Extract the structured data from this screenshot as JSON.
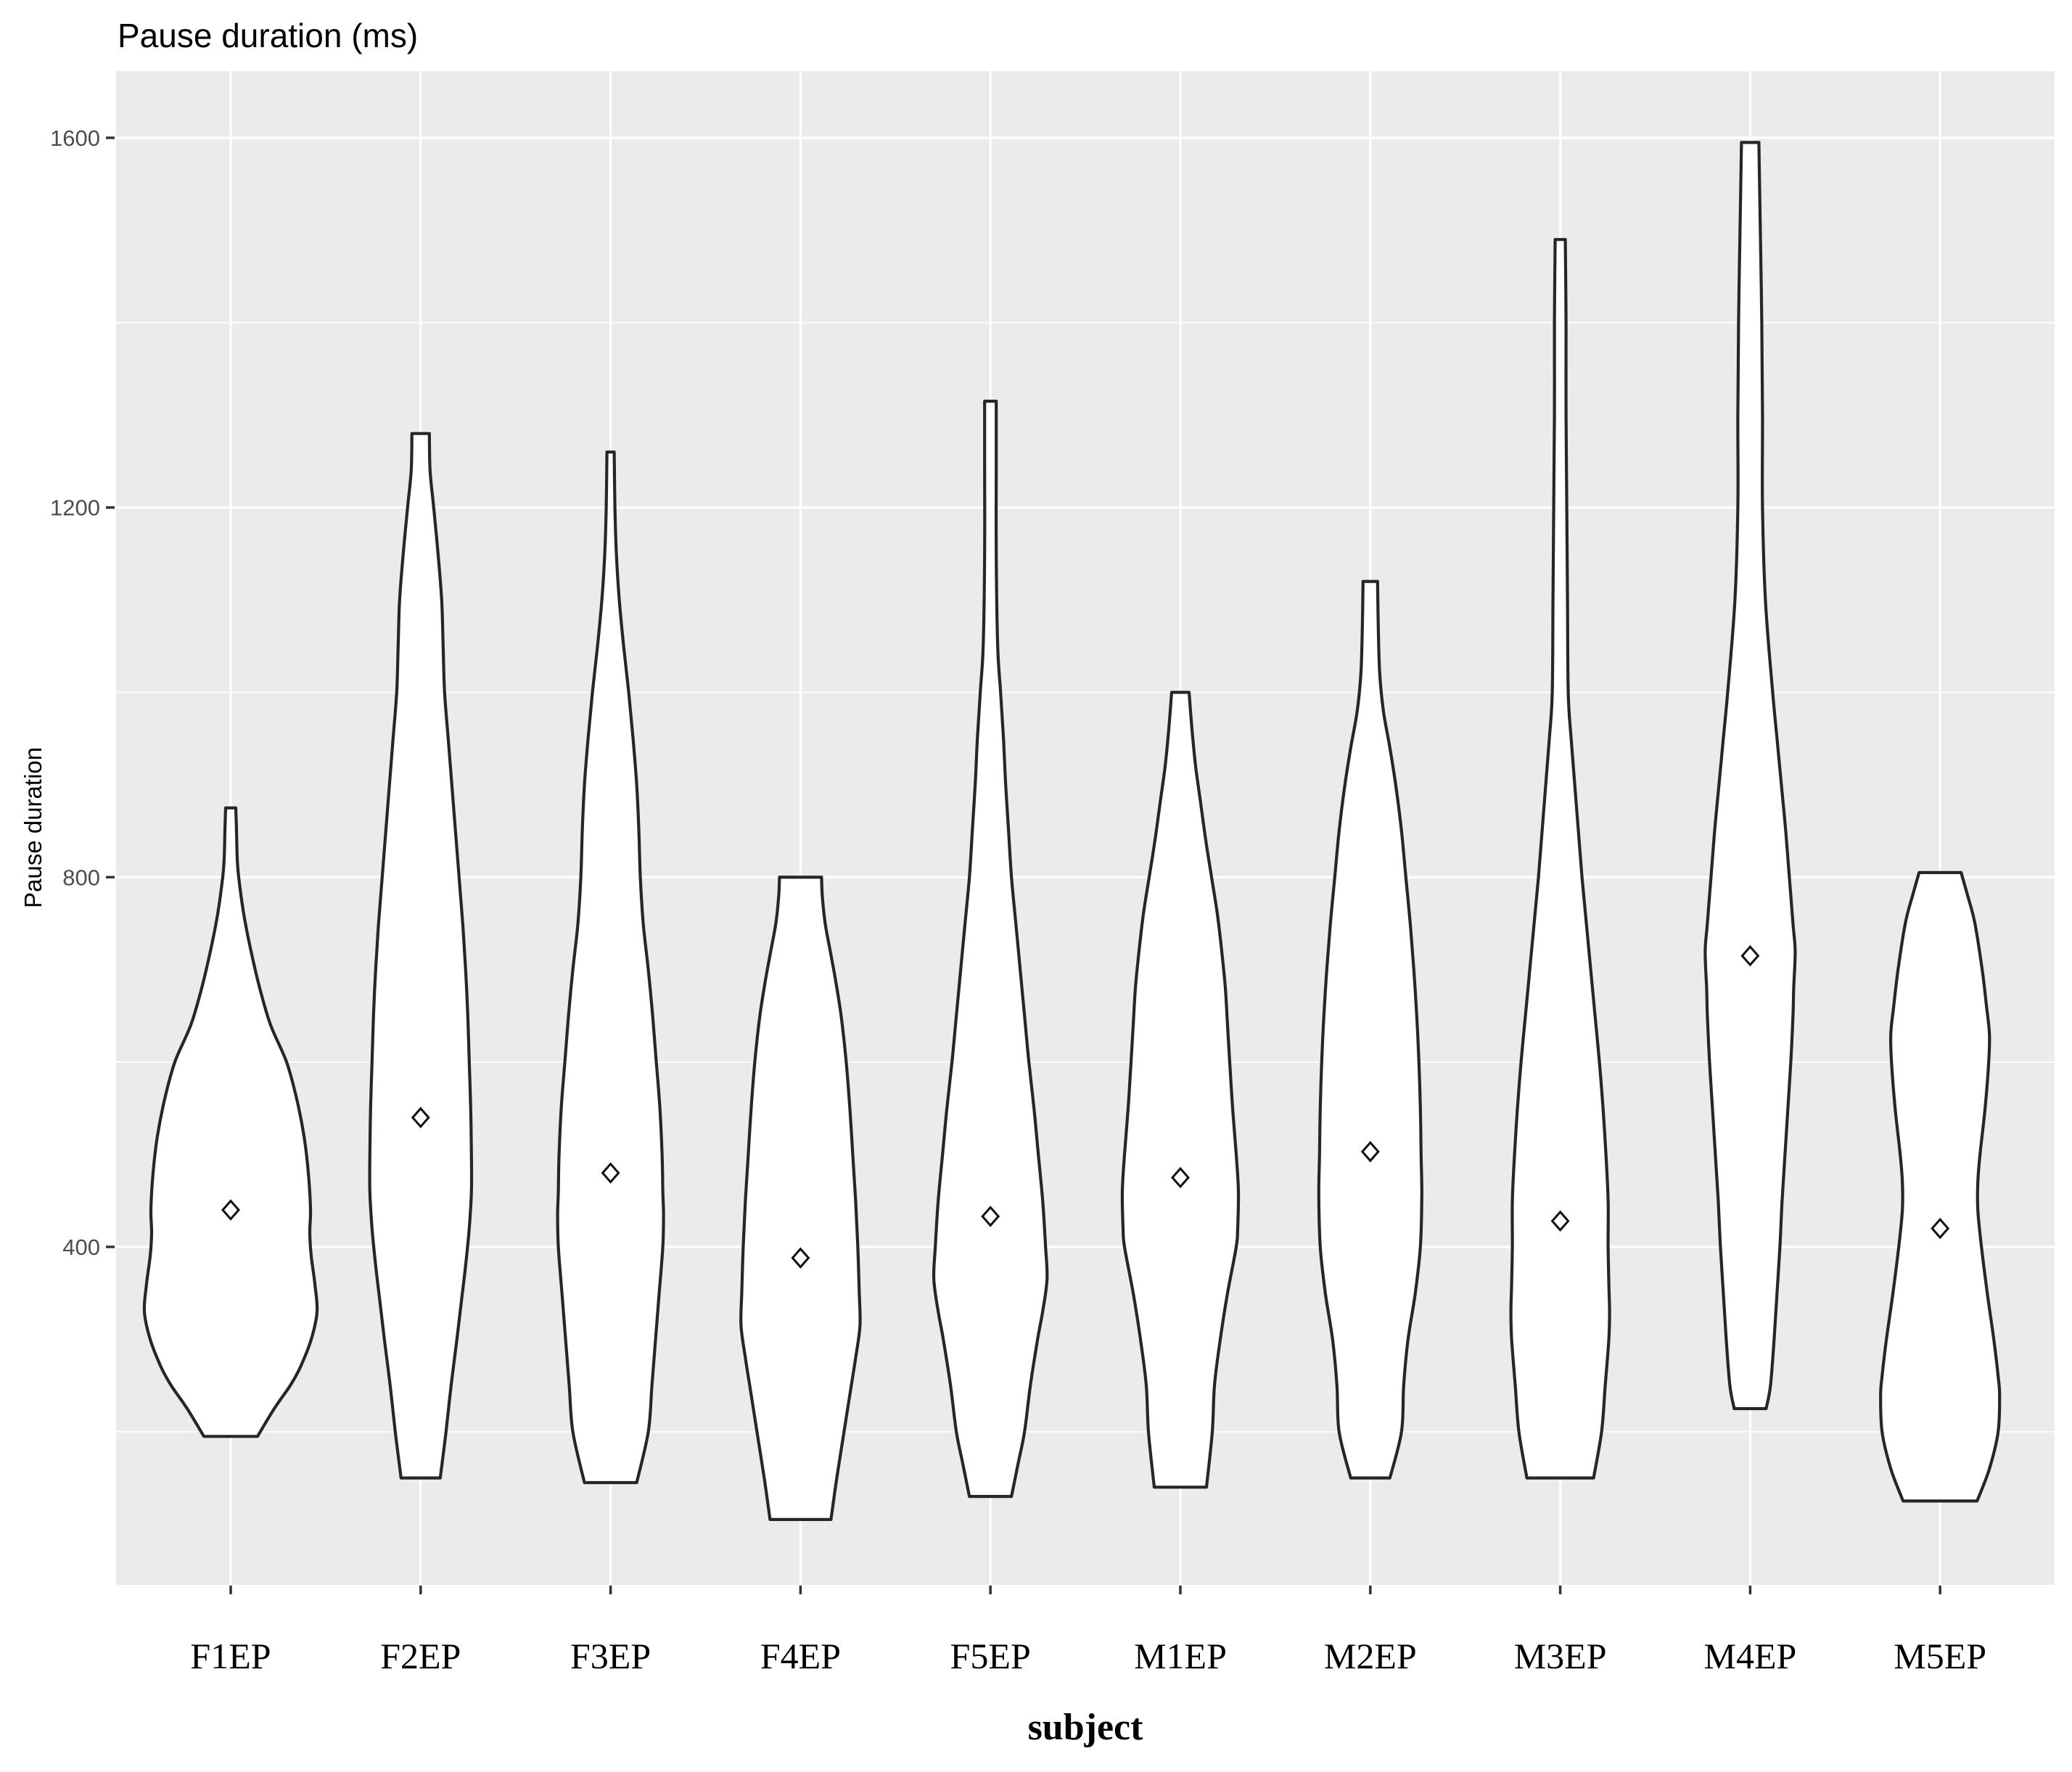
{
  "title": "Pause duration (ms)",
  "axes": {
    "y_title": "Pause duration",
    "x_title": "subject"
  },
  "colors": {
    "panel_bg": "#EBEBEB",
    "gridline": "#FFFFFF",
    "violin_fill": "#FFFFFF",
    "violin_stroke": "#262626",
    "axis_tick_label": "#4D4D4D",
    "axis_tick_mark": "#333333",
    "text": "#000000",
    "mean_marker_stroke": "#111111",
    "mean_marker_fill": "#FFFFFF"
  },
  "chart_data": {
    "type": "violin",
    "title": "Pause duration (ms)",
    "xlabel": "subject",
    "ylabel": "Pause duration",
    "y_unit": "ms",
    "y_major_ticks": [
      400,
      800,
      1200,
      1600
    ],
    "y_tick_labels": [
      "400",
      "800",
      "1200",
      "1600"
    ],
    "y_minor_gridlines": [
      200,
      600,
      1000,
      1400
    ],
    "y_panel_range": [
      34,
      1672
    ],
    "grid": "white major and minor horizontal gridlines plus vertical line per category on gray panel",
    "legend": "none",
    "mean_marker": "open diamond = mean pause duration",
    "categories": [
      "F1EP",
      "F2EP",
      "F3EP",
      "F4EP",
      "F5EP",
      "M1EP",
      "M2EP",
      "M3EP",
      "M4EP",
      "M5EP"
    ],
    "series": [
      {
        "subject": "F1EP",
        "mean": 440,
        "min": 195,
        "max": 875,
        "profile": [
          [
            875,
            7
          ],
          [
            850,
            8
          ],
          [
            820,
            9
          ],
          [
            800,
            11
          ],
          [
            760,
            18
          ],
          [
            720,
            28
          ],
          [
            680,
            40
          ],
          [
            640,
            55
          ],
          [
            600,
            77
          ],
          [
            560,
            91
          ],
          [
            520,
            101
          ],
          [
            480,
            107
          ],
          [
            440,
            110
          ],
          [
            415,
            109
          ],
          [
            390,
            111
          ],
          [
            360,
            116
          ],
          [
            330,
            119
          ],
          [
            300,
            111
          ],
          [
            270,
            96
          ],
          [
            250,
            82
          ],
          [
            225,
            60
          ],
          [
            195,
            37
          ]
        ]
      },
      {
        "subject": "F2EP",
        "mean": 540,
        "min": 150,
        "max": 1280,
        "profile": [
          [
            1280,
            12
          ],
          [
            1240,
            13
          ],
          [
            1200,
            18
          ],
          [
            1150,
            24
          ],
          [
            1100,
            29
          ],
          [
            1050,
            31
          ],
          [
            1000,
            33
          ],
          [
            950,
            38
          ],
          [
            900,
            43
          ],
          [
            850,
            48
          ],
          [
            800,
            53
          ],
          [
            750,
            58
          ],
          [
            700,
            62
          ],
          [
            650,
            65
          ],
          [
            600,
            67
          ],
          [
            550,
            69
          ],
          [
            500,
            70
          ],
          [
            460,
            70
          ],
          [
            420,
            67
          ],
          [
            380,
            62
          ],
          [
            340,
            56
          ],
          [
            300,
            50
          ],
          [
            250,
            42
          ],
          [
            200,
            35
          ],
          [
            150,
            27
          ]
        ]
      },
      {
        "subject": "F3EP",
        "mean": 480,
        "min": 145,
        "max": 1260,
        "profile": [
          [
            1260,
            5
          ],
          [
            1200,
            6
          ],
          [
            1150,
            8
          ],
          [
            1100,
            12
          ],
          [
            1050,
            18
          ],
          [
            1000,
            25
          ],
          [
            950,
            31
          ],
          [
            900,
            36
          ],
          [
            850,
            39
          ],
          [
            800,
            41
          ],
          [
            750,
            45
          ],
          [
            700,
            52
          ],
          [
            650,
            58
          ],
          [
            600,
            63
          ],
          [
            550,
            68
          ],
          [
            500,
            71
          ],
          [
            460,
            72
          ],
          [
            435,
            73
          ],
          [
            400,
            72
          ],
          [
            350,
            67
          ],
          [
            300,
            62
          ],
          [
            250,
            57
          ],
          [
            200,
            52
          ],
          [
            145,
            36
          ]
        ]
      },
      {
        "subject": "F4EP",
        "mean": 388,
        "min": 105,
        "max": 800,
        "profile": [
          [
            800,
            29
          ],
          [
            780,
            30
          ],
          [
            750,
            34
          ],
          [
            720,
            41
          ],
          [
            690,
            48
          ],
          [
            650,
            56
          ],
          [
            600,
            63
          ],
          [
            550,
            68
          ],
          [
            500,
            72
          ],
          [
            450,
            76
          ],
          [
            400,
            79
          ],
          [
            350,
            81
          ],
          [
            315,
            82
          ],
          [
            280,
            76
          ],
          [
            250,
            70
          ],
          [
            200,
            60
          ],
          [
            150,
            50
          ],
          [
            105,
            42
          ]
        ]
      },
      {
        "subject": "F5EP",
        "mean": 433,
        "min": 130,
        "max": 1315,
        "profile": [
          [
            1315,
            8
          ],
          [
            1250,
            8
          ],
          [
            1150,
            8
          ],
          [
            1050,
            10
          ],
          [
            1000,
            14
          ],
          [
            950,
            18
          ],
          [
            900,
            21
          ],
          [
            850,
            25
          ],
          [
            800,
            29
          ],
          [
            750,
            35
          ],
          [
            700,
            41
          ],
          [
            650,
            47
          ],
          [
            600,
            53
          ],
          [
            550,
            60
          ],
          [
            500,
            66
          ],
          [
            450,
            72
          ],
          [
            400,
            76
          ],
          [
            365,
            78
          ],
          [
            330,
            72
          ],
          [
            300,
            65
          ],
          [
            250,
            55
          ],
          [
            200,
            47
          ],
          [
            165,
            38
          ],
          [
            130,
            29
          ]
        ]
      },
      {
        "subject": "M1EP",
        "mean": 475,
        "min": 140,
        "max": 1000,
        "profile": [
          [
            1000,
            12
          ],
          [
            960,
            16
          ],
          [
            920,
            21
          ],
          [
            880,
            28
          ],
          [
            840,
            35
          ],
          [
            800,
            43
          ],
          [
            760,
            51
          ],
          [
            720,
            57
          ],
          [
            680,
            62
          ],
          [
            640,
            65
          ],
          [
            600,
            68
          ],
          [
            550,
            72
          ],
          [
            500,
            77
          ],
          [
            460,
            80
          ],
          [
            420,
            79
          ],
          [
            400,
            77
          ],
          [
            350,
            65
          ],
          [
            300,
            55
          ],
          [
            250,
            47
          ],
          [
            200,
            44
          ],
          [
            140,
            36
          ]
        ]
      },
      {
        "subject": "M2EP",
        "mean": 503,
        "min": 150,
        "max": 1120,
        "profile": [
          [
            1120,
            10
          ],
          [
            1070,
            11
          ],
          [
            1020,
            13
          ],
          [
            980,
            18
          ],
          [
            940,
            27
          ],
          [
            900,
            35
          ],
          [
            850,
            43
          ],
          [
            800,
            49
          ],
          [
            750,
            55
          ],
          [
            700,
            60
          ],
          [
            650,
            64
          ],
          [
            600,
            67
          ],
          [
            550,
            69
          ],
          [
            500,
            70
          ],
          [
            455,
            71
          ],
          [
            400,
            69
          ],
          [
            350,
            62
          ],
          [
            300,
            52
          ],
          [
            250,
            46
          ],
          [
            200,
            43
          ],
          [
            150,
            27
          ]
        ]
      },
      {
        "subject": "M3EP",
        "mean": 428,
        "min": 150,
        "max": 1490,
        "profile": [
          [
            1490,
            7
          ],
          [
            1400,
            8
          ],
          [
            1300,
            8
          ],
          [
            1200,
            9
          ],
          [
            1100,
            10
          ],
          [
            1000,
            11
          ],
          [
            950,
            15
          ],
          [
            900,
            20
          ],
          [
            850,
            25
          ],
          [
            800,
            30
          ],
          [
            750,
            36
          ],
          [
            700,
            42
          ],
          [
            650,
            48
          ],
          [
            600,
            54
          ],
          [
            550,
            59
          ],
          [
            500,
            63
          ],
          [
            450,
            66
          ],
          [
            400,
            66
          ],
          [
            360,
            67
          ],
          [
            330,
            68
          ],
          [
            300,
            67
          ],
          [
            250,
            62
          ],
          [
            200,
            57
          ],
          [
            150,
            46
          ]
        ]
      },
      {
        "subject": "M4EP",
        "mean": 715,
        "min": 225,
        "max": 1595,
        "profile": [
          [
            1595,
            12
          ],
          [
            1500,
            14
          ],
          [
            1400,
            16
          ],
          [
            1300,
            17
          ],
          [
            1200,
            17
          ],
          [
            1100,
            21
          ],
          [
            1000,
            31
          ],
          [
            950,
            37
          ],
          [
            900,
            43
          ],
          [
            850,
            49
          ],
          [
            800,
            54
          ],
          [
            750,
            59
          ],
          [
            720,
            62
          ],
          [
            680,
            60
          ],
          [
            650,
            59
          ],
          [
            600,
            56
          ],
          [
            550,
            52
          ],
          [
            500,
            48
          ],
          [
            450,
            44
          ],
          [
            400,
            41
          ],
          [
            350,
            37
          ],
          [
            300,
            33
          ],
          [
            250,
            28
          ],
          [
            225,
            22
          ]
        ]
      },
      {
        "subject": "M5EP",
        "mean": 420,
        "min": 125,
        "max": 805,
        "profile": [
          [
            805,
            29
          ],
          [
            780,
            38
          ],
          [
            750,
            48
          ],
          [
            700,
            58
          ],
          [
            660,
            64
          ],
          [
            630,
            68
          ],
          [
            600,
            67
          ],
          [
            550,
            62
          ],
          [
            500,
            55
          ],
          [
            470,
            52
          ],
          [
            440,
            52
          ],
          [
            400,
            57
          ],
          [
            350,
            65
          ],
          [
            300,
            74
          ],
          [
            260,
            80
          ],
          [
            240,
            82
          ],
          [
            200,
            80
          ],
          [
            160,
            68
          ],
          [
            125,
            51
          ]
        ]
      }
    ]
  }
}
